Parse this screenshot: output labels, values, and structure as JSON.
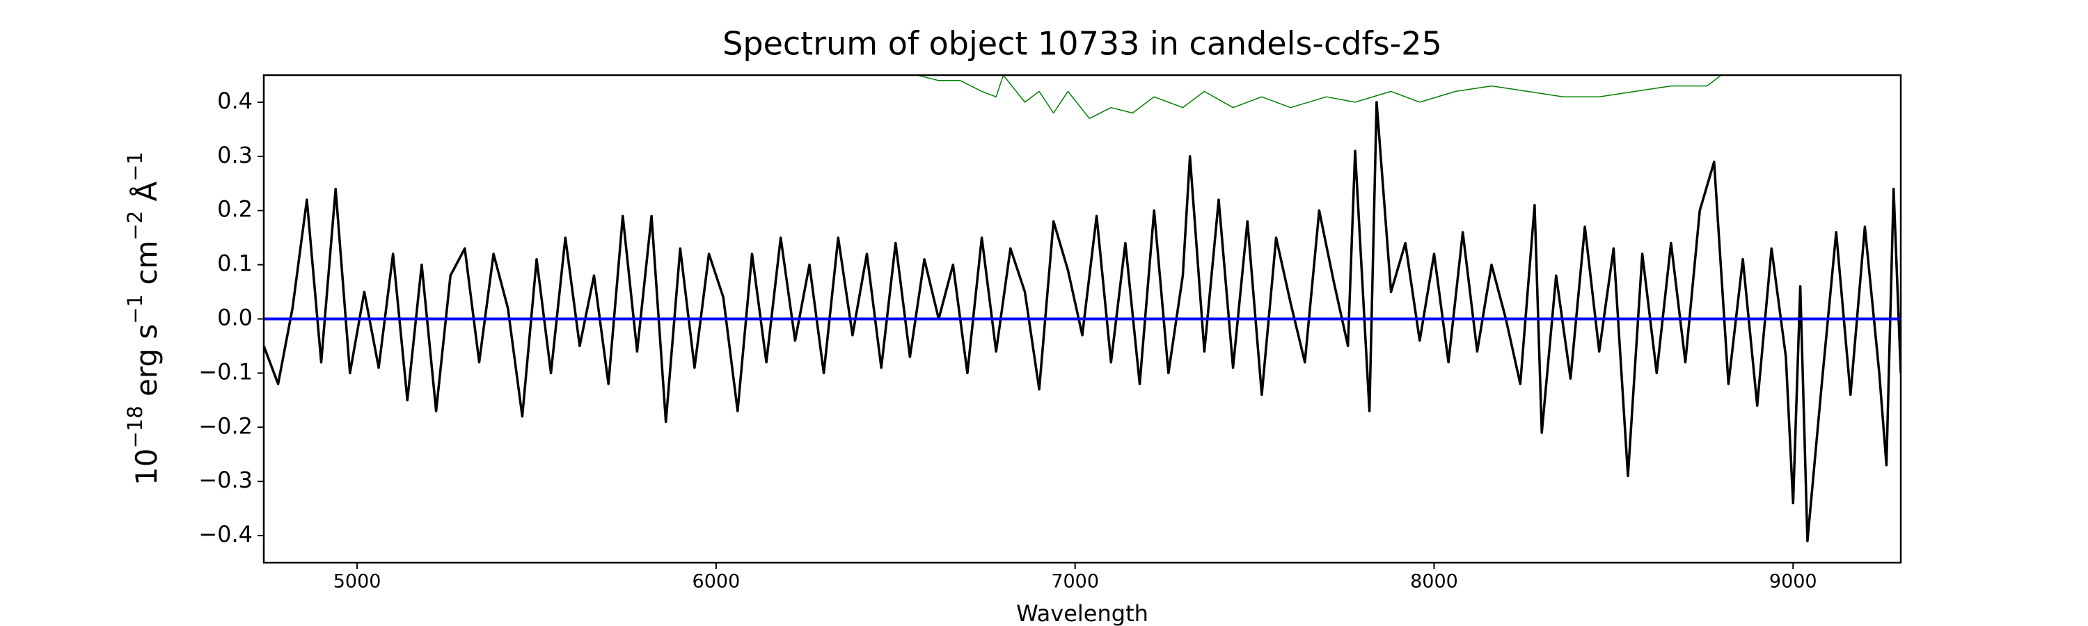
{
  "chart_data": {
    "type": "line",
    "title": "Spectrum of object 10733 in candels-cdfs-25",
    "xlabel": "Wavelength",
    "ylabel": [
      "10",
      "−18",
      " erg s",
      "−1",
      " cm",
      "−2",
      " Å",
      "−1"
    ],
    "xlim": [
      4740,
      9300
    ],
    "ylim": [
      -0.45,
      0.45
    ],
    "xticks": [
      5000,
      6000,
      7000,
      8000,
      9000
    ],
    "yticks": [
      {
        "value": -0.4,
        "label": "−0.4"
      },
      {
        "value": -0.3,
        "label": "−0.3"
      },
      {
        "value": -0.2,
        "label": "−0.2"
      },
      {
        "value": -0.1,
        "label": "−0.1"
      },
      {
        "value": 0,
        "label": "0.0"
      },
      0.1,
      0.2,
      0.3,
      0.4
    ],
    "grid": false,
    "series": [
      {
        "color": "#008000",
        "width": 1.5,
        "x": [
          6560,
          6620,
          6680,
          6740,
          6780,
          6800,
          6860,
          6900,
          6940,
          6980,
          7040,
          7100,
          7160,
          7220,
          7300,
          7360,
          7440,
          7520,
          7600,
          7700,
          7780,
          7880,
          7960,
          8060,
          8160,
          8260,
          8360,
          8460,
          8560,
          8660,
          8760,
          8800
        ],
        "values": [
          0.45,
          0.44,
          0.44,
          0.42,
          0.41,
          0.45,
          0.4,
          0.42,
          0.38,
          0.42,
          0.37,
          0.39,
          0.38,
          0.41,
          0.39,
          0.42,
          0.39,
          0.41,
          0.39,
          0.41,
          0.4,
          0.42,
          0.4,
          0.42,
          0.43,
          0.42,
          0.41,
          0.41,
          0.42,
          0.43,
          0.43,
          0.45
        ]
      },
      {
        "color": "#000000",
        "width": 3.5,
        "x": [
          4740,
          4780,
          4820,
          4860,
          4900,
          4940,
          4980,
          5020,
          5060,
          5100,
          5140,
          5180,
          5220,
          5260,
          5300,
          5340,
          5380,
          5420,
          5460,
          5500,
          5540,
          5580,
          5620,
          5660,
          5700,
          5740,
          5780,
          5820,
          5860,
          5900,
          5940,
          5980,
          6020,
          6060,
          6100,
          6140,
          6180,
          6220,
          6260,
          6300,
          6340,
          6380,
          6420,
          6460,
          6500,
          6540,
          6580,
          6620,
          6660,
          6700,
          6740,
          6780,
          6820,
          6860,
          6900,
          6940,
          6980,
          7020,
          7060,
          7100,
          7140,
          7180,
          7220,
          7260,
          7300,
          7320,
          7360,
          7400,
          7440,
          7480,
          7520,
          7560,
          7600,
          7640,
          7680,
          7720,
          7760,
          7780,
          7820,
          7840,
          7880,
          7920,
          7960,
          8000,
          8040,
          8080,
          8120,
          8160,
          8200,
          8240,
          8280,
          8300,
          8340,
          8380,
          8420,
          8460,
          8500,
          8540,
          8580,
          8620,
          8660,
          8700,
          8740,
          8780,
          8820,
          8860,
          8900,
          8940,
          8980,
          9000,
          9020,
          9040,
          9080,
          9120,
          9160,
          9200,
          9240,
          9260,
          9280,
          9300
        ],
        "values": [
          -0.05,
          -0.12,
          0.02,
          0.22,
          -0.08,
          0.24,
          -0.1,
          0.05,
          -0.09,
          0.12,
          -0.15,
          0.1,
          -0.17,
          0.08,
          0.13,
          -0.08,
          0.12,
          0.02,
          -0.18,
          0.11,
          -0.1,
          0.15,
          -0.05,
          0.08,
          -0.12,
          0.19,
          -0.06,
          0.19,
          -0.19,
          0.13,
          -0.09,
          0.12,
          0.04,
          -0.17,
          0.12,
          -0.08,
          0.15,
          -0.04,
          0.1,
          -0.1,
          0.15,
          -0.03,
          0.12,
          -0.09,
          0.14,
          -0.07,
          0.11,
          0.0,
          0.1,
          -0.1,
          0.15,
          -0.06,
          0.13,
          0.05,
          -0.13,
          0.18,
          0.09,
          -0.03,
          0.19,
          -0.08,
          0.14,
          -0.12,
          0.2,
          -0.1,
          0.08,
          0.3,
          -0.06,
          0.22,
          -0.09,
          0.18,
          -0.14,
          0.15,
          0.03,
          -0.08,
          0.2,
          0.07,
          -0.05,
          0.31,
          -0.17,
          0.4,
          0.05,
          0.14,
          -0.04,
          0.12,
          -0.08,
          0.16,
          -0.06,
          0.1,
          0.0,
          -0.12,
          0.21,
          -0.21,
          0.08,
          -0.11,
          0.17,
          -0.06,
          0.13,
          -0.29,
          0.12,
          -0.1,
          0.14,
          -0.08,
          0.2,
          0.29,
          -0.12,
          0.11,
          -0.16,
          0.13,
          -0.07,
          -0.34,
          0.06,
          -0.41,
          -0.12,
          0.16,
          -0.14,
          0.17,
          -0.1,
          -0.27,
          0.24,
          -0.1
        ]
      },
      {
        "color": "#0000ff",
        "width": 4,
        "x": [
          4740,
          9300
        ],
        "values": [
          0,
          0
        ]
      }
    ]
  }
}
